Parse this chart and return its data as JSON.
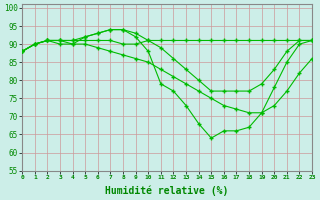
{
  "xlabel": "Humidité relative (%)",
  "background_color": "#cceee8",
  "grid_color": "#ddbbbb",
  "line_color": "#00bb00",
  "ylim": [
    55,
    101
  ],
  "xlim": [
    0,
    23
  ],
  "yticks": [
    55,
    60,
    65,
    70,
    75,
    80,
    85,
    90,
    95,
    100
  ],
  "xticks": [
    0,
    1,
    2,
    3,
    4,
    5,
    6,
    7,
    8,
    9,
    10,
    11,
    12,
    13,
    14,
    15,
    16,
    17,
    18,
    19,
    20,
    21,
    22,
    23
  ],
  "series": [
    [
      88,
      90,
      91,
      91,
      90,
      92,
      93,
      94,
      94,
      92,
      88,
      79,
      77,
      73,
      68,
      64,
      66,
      66,
      67,
      71,
      78,
      85,
      90,
      91
    ],
    [
      88,
      90,
      91,
      91,
      91,
      91,
      91,
      91,
      90,
      90,
      91,
      91,
      91,
      91,
      91,
      91,
      91,
      91,
      91,
      91,
      91,
      91,
      91,
      91
    ],
    [
      88,
      90,
      91,
      90,
      90,
      90,
      89,
      88,
      87,
      86,
      85,
      83,
      81,
      79,
      77,
      75,
      73,
      72,
      71,
      71,
      73,
      77,
      82,
      86
    ],
    [
      88,
      90,
      91,
      91,
      91,
      92,
      93,
      94,
      94,
      93,
      91,
      89,
      86,
      83,
      80,
      77,
      77,
      77,
      77,
      79,
      83,
      88,
      91,
      91
    ]
  ]
}
